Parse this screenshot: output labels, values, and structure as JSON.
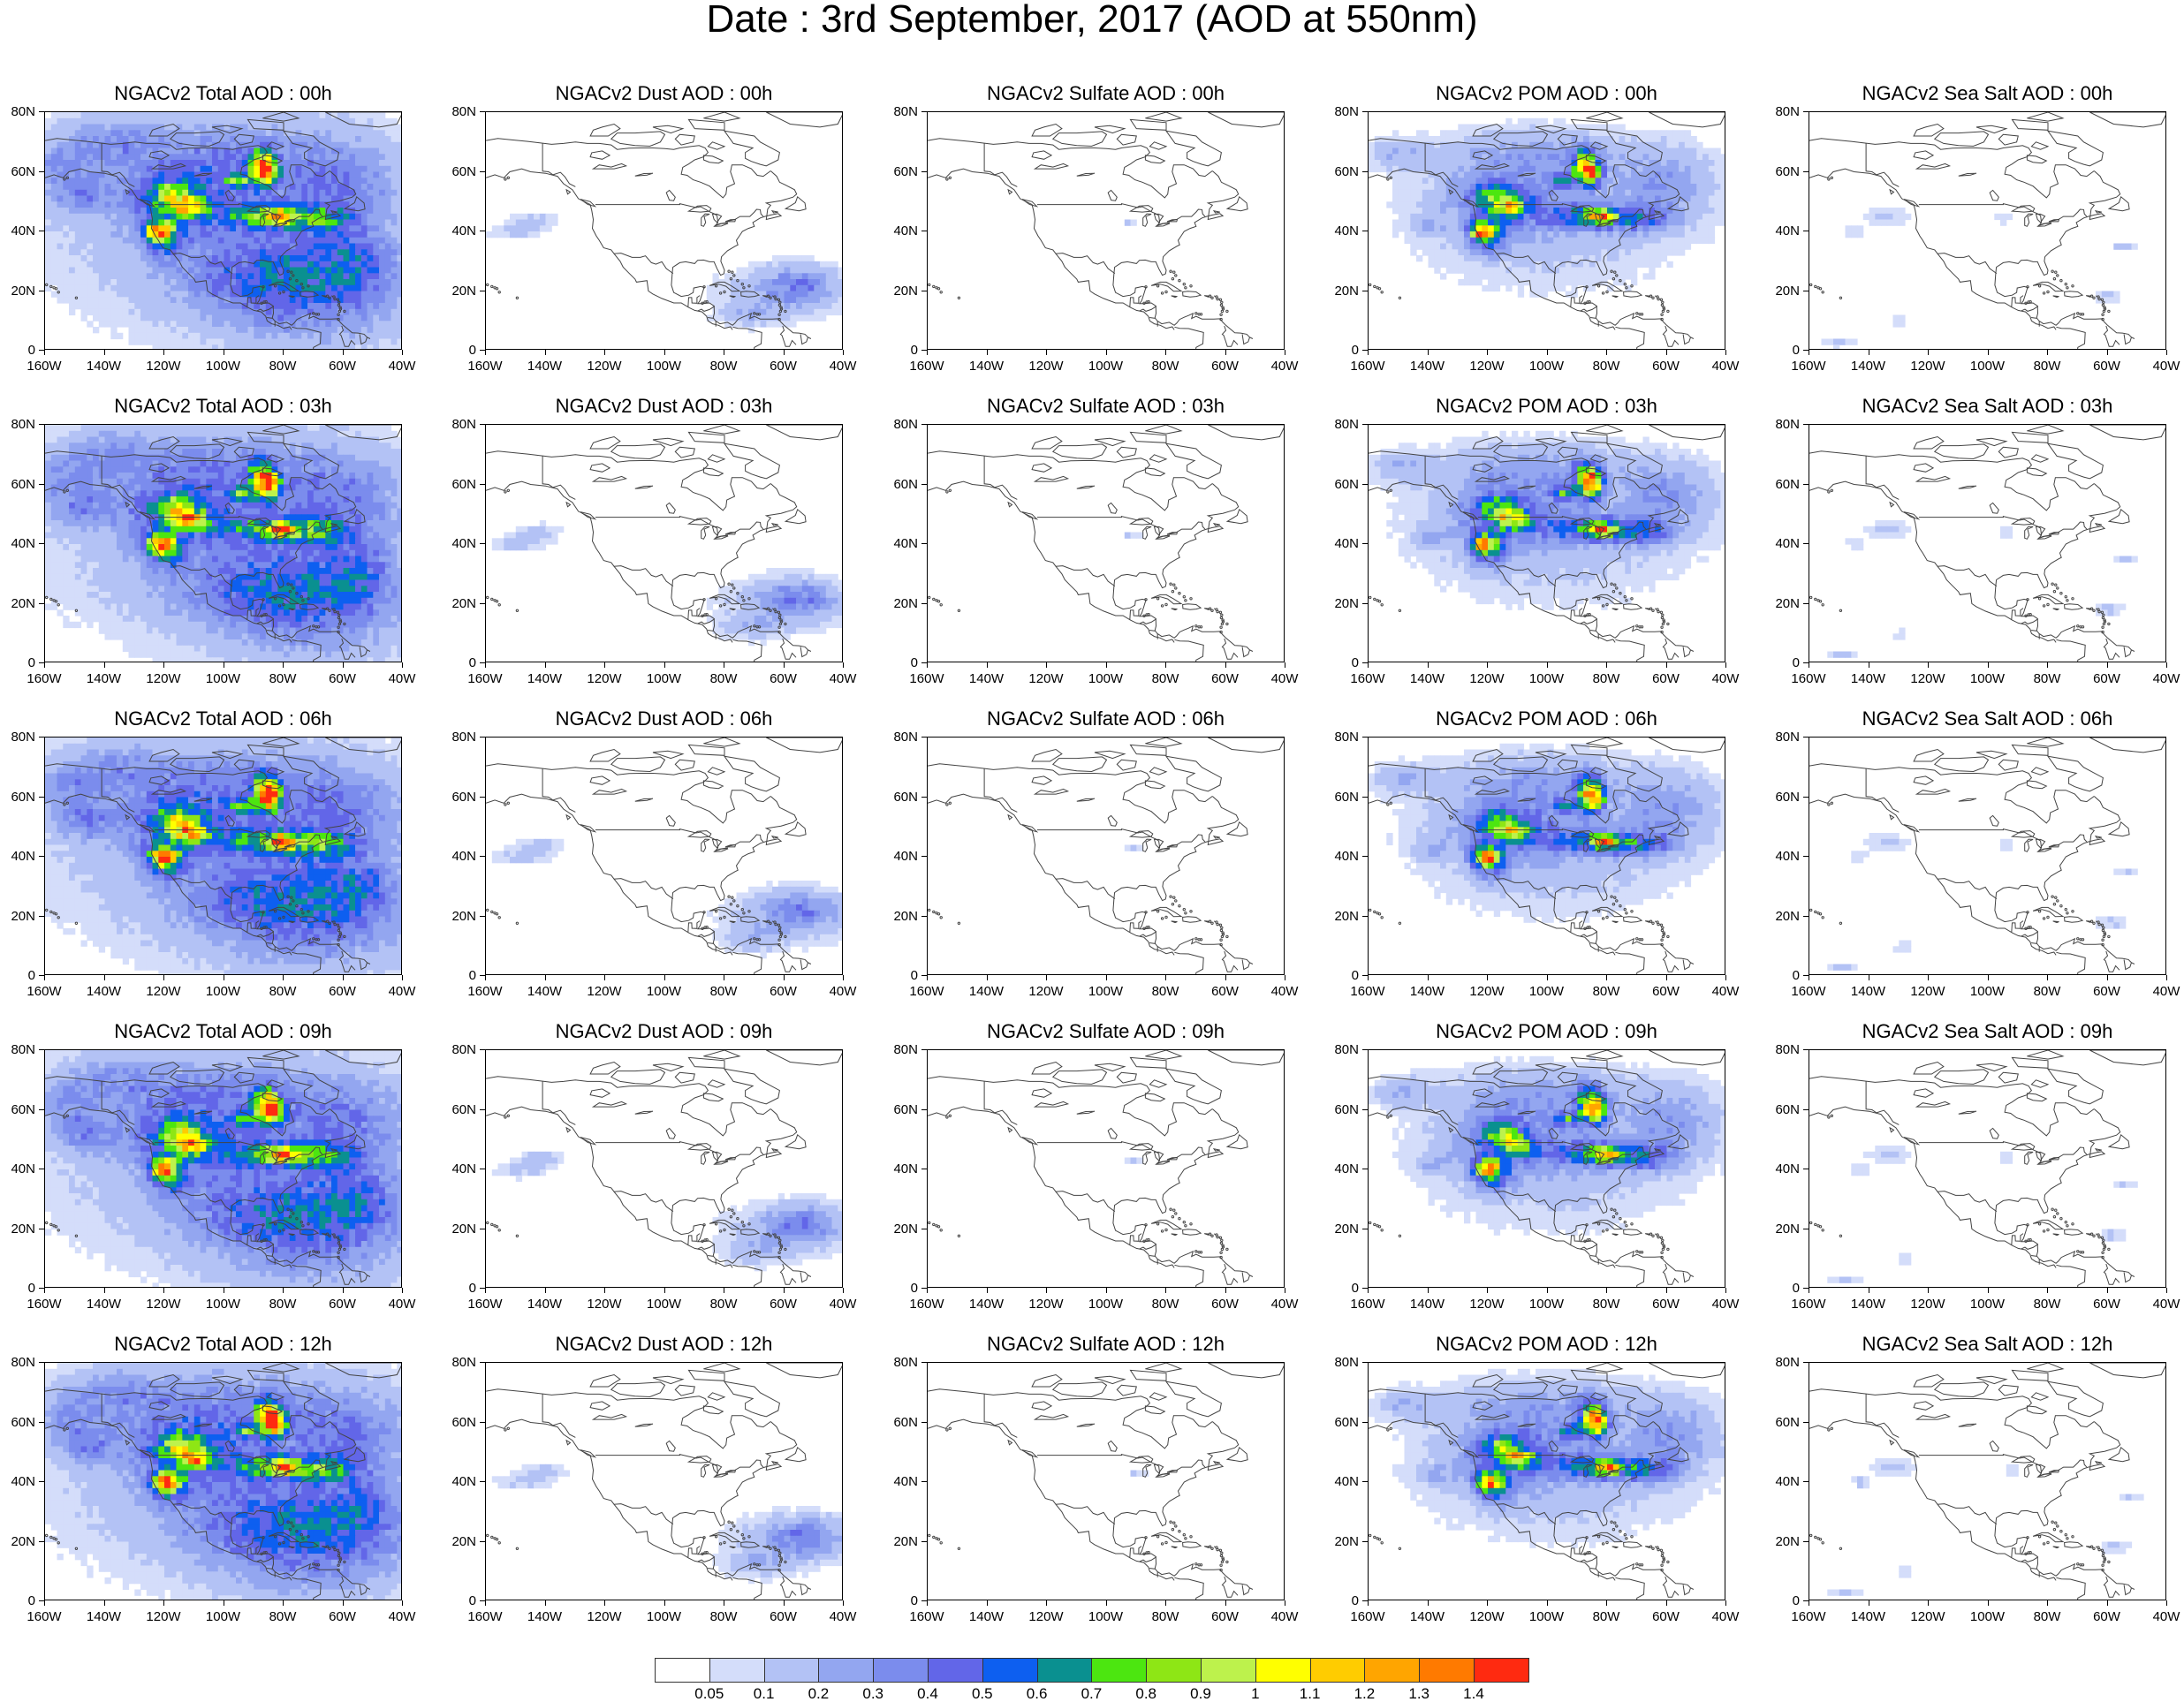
{
  "title": "Date : 3rd September, 2017 (AOD at 550nm)",
  "map": {
    "lat_ticks": [
      "0",
      "20N",
      "40N",
      "60N",
      "80N"
    ],
    "lon_ticks": [
      "160W",
      "140W",
      "120W",
      "100W",
      "80W",
      "60W",
      "40W"
    ],
    "extent": {
      "lon": [
        -160,
        -40
      ],
      "lat": [
        0,
        80
      ]
    }
  },
  "species": [
    "Total",
    "Dust",
    "Sulfate",
    "POM",
    "Sea Salt"
  ],
  "hours": [
    "00h",
    "03h",
    "06h",
    "09h",
    "12h"
  ],
  "panels": [
    [
      {
        "title": "NGACv2 Total AOD : 00h",
        "species": "Total"
      },
      {
        "title": "NGACv2 Dust AOD : 00h",
        "species": "Dust"
      },
      {
        "title": "NGACv2 Sulfate AOD : 00h",
        "species": "Sulfate"
      },
      {
        "title": "NGACv2 POM AOD : 00h",
        "species": "POM"
      },
      {
        "title": "NGACv2 Sea Salt AOD : 00h",
        "species": "Sea Salt"
      }
    ],
    [
      {
        "title": "NGACv2 Total AOD : 03h",
        "species": "Total"
      },
      {
        "title": "NGACv2 Dust AOD : 03h",
        "species": "Dust"
      },
      {
        "title": "NGACv2 Sulfate AOD : 03h",
        "species": "Sulfate"
      },
      {
        "title": "NGACv2 POM AOD : 03h",
        "species": "POM"
      },
      {
        "title": "NGACv2 Sea Salt AOD : 03h",
        "species": "Sea Salt"
      }
    ],
    [
      {
        "title": "NGACv2 Total AOD : 06h",
        "species": "Total"
      },
      {
        "title": "NGACv2 Dust AOD : 06h",
        "species": "Dust"
      },
      {
        "title": "NGACv2 Sulfate AOD : 06h",
        "species": "Sulfate"
      },
      {
        "title": "NGACv2 POM AOD : 06h",
        "species": "POM"
      },
      {
        "title": "NGACv2 Sea Salt AOD : 06h",
        "species": "Sea Salt"
      }
    ],
    [
      {
        "title": "NGACv2 Total AOD : 09h",
        "species": "Total"
      },
      {
        "title": "NGACv2 Dust AOD : 09h",
        "species": "Dust"
      },
      {
        "title": "NGACv2 Sulfate AOD : 09h",
        "species": "Sulfate"
      },
      {
        "title": "NGACv2 POM AOD : 09h",
        "species": "POM"
      },
      {
        "title": "NGACv2 Sea Salt  AOD : 09h",
        "species": "Sea Salt"
      }
    ],
    [
      {
        "title": "NGACv2 Total AOD  : 12h",
        "species": "Total"
      },
      {
        "title": "NGACv2 Dust AOD : 12h",
        "species": "Dust"
      },
      {
        "title": "NGACv2 Sulfate AOD : 12h",
        "species": "Sulfate"
      },
      {
        "title": "NGACv2 POM  AOD : 12h",
        "species": "POM"
      },
      {
        "title": "NGACv2 Sea Salt  AOD : 12h",
        "species": "Sea Salt"
      }
    ]
  ],
  "colorbar": {
    "labels": [
      "0.05",
      "0.1",
      "0.2",
      "0.3",
      "0.4",
      "0.5",
      "0.6",
      "0.7",
      "0.8",
      "0.9",
      "1",
      "1.1",
      "1.2",
      "1.3",
      "1.4"
    ],
    "colors": [
      "#ffffff",
      "#d4ddfa",
      "#b3c2f5",
      "#93a6f0",
      "#7b8ced",
      "#6266e8",
      "#0d5ff0",
      "#0a9090",
      "#4ce610",
      "#8ee615",
      "#bdf24c",
      "#ffff00",
      "#ffcc00",
      "#ffa500",
      "#ff7a00",
      "#ff2a10"
    ]
  }
}
